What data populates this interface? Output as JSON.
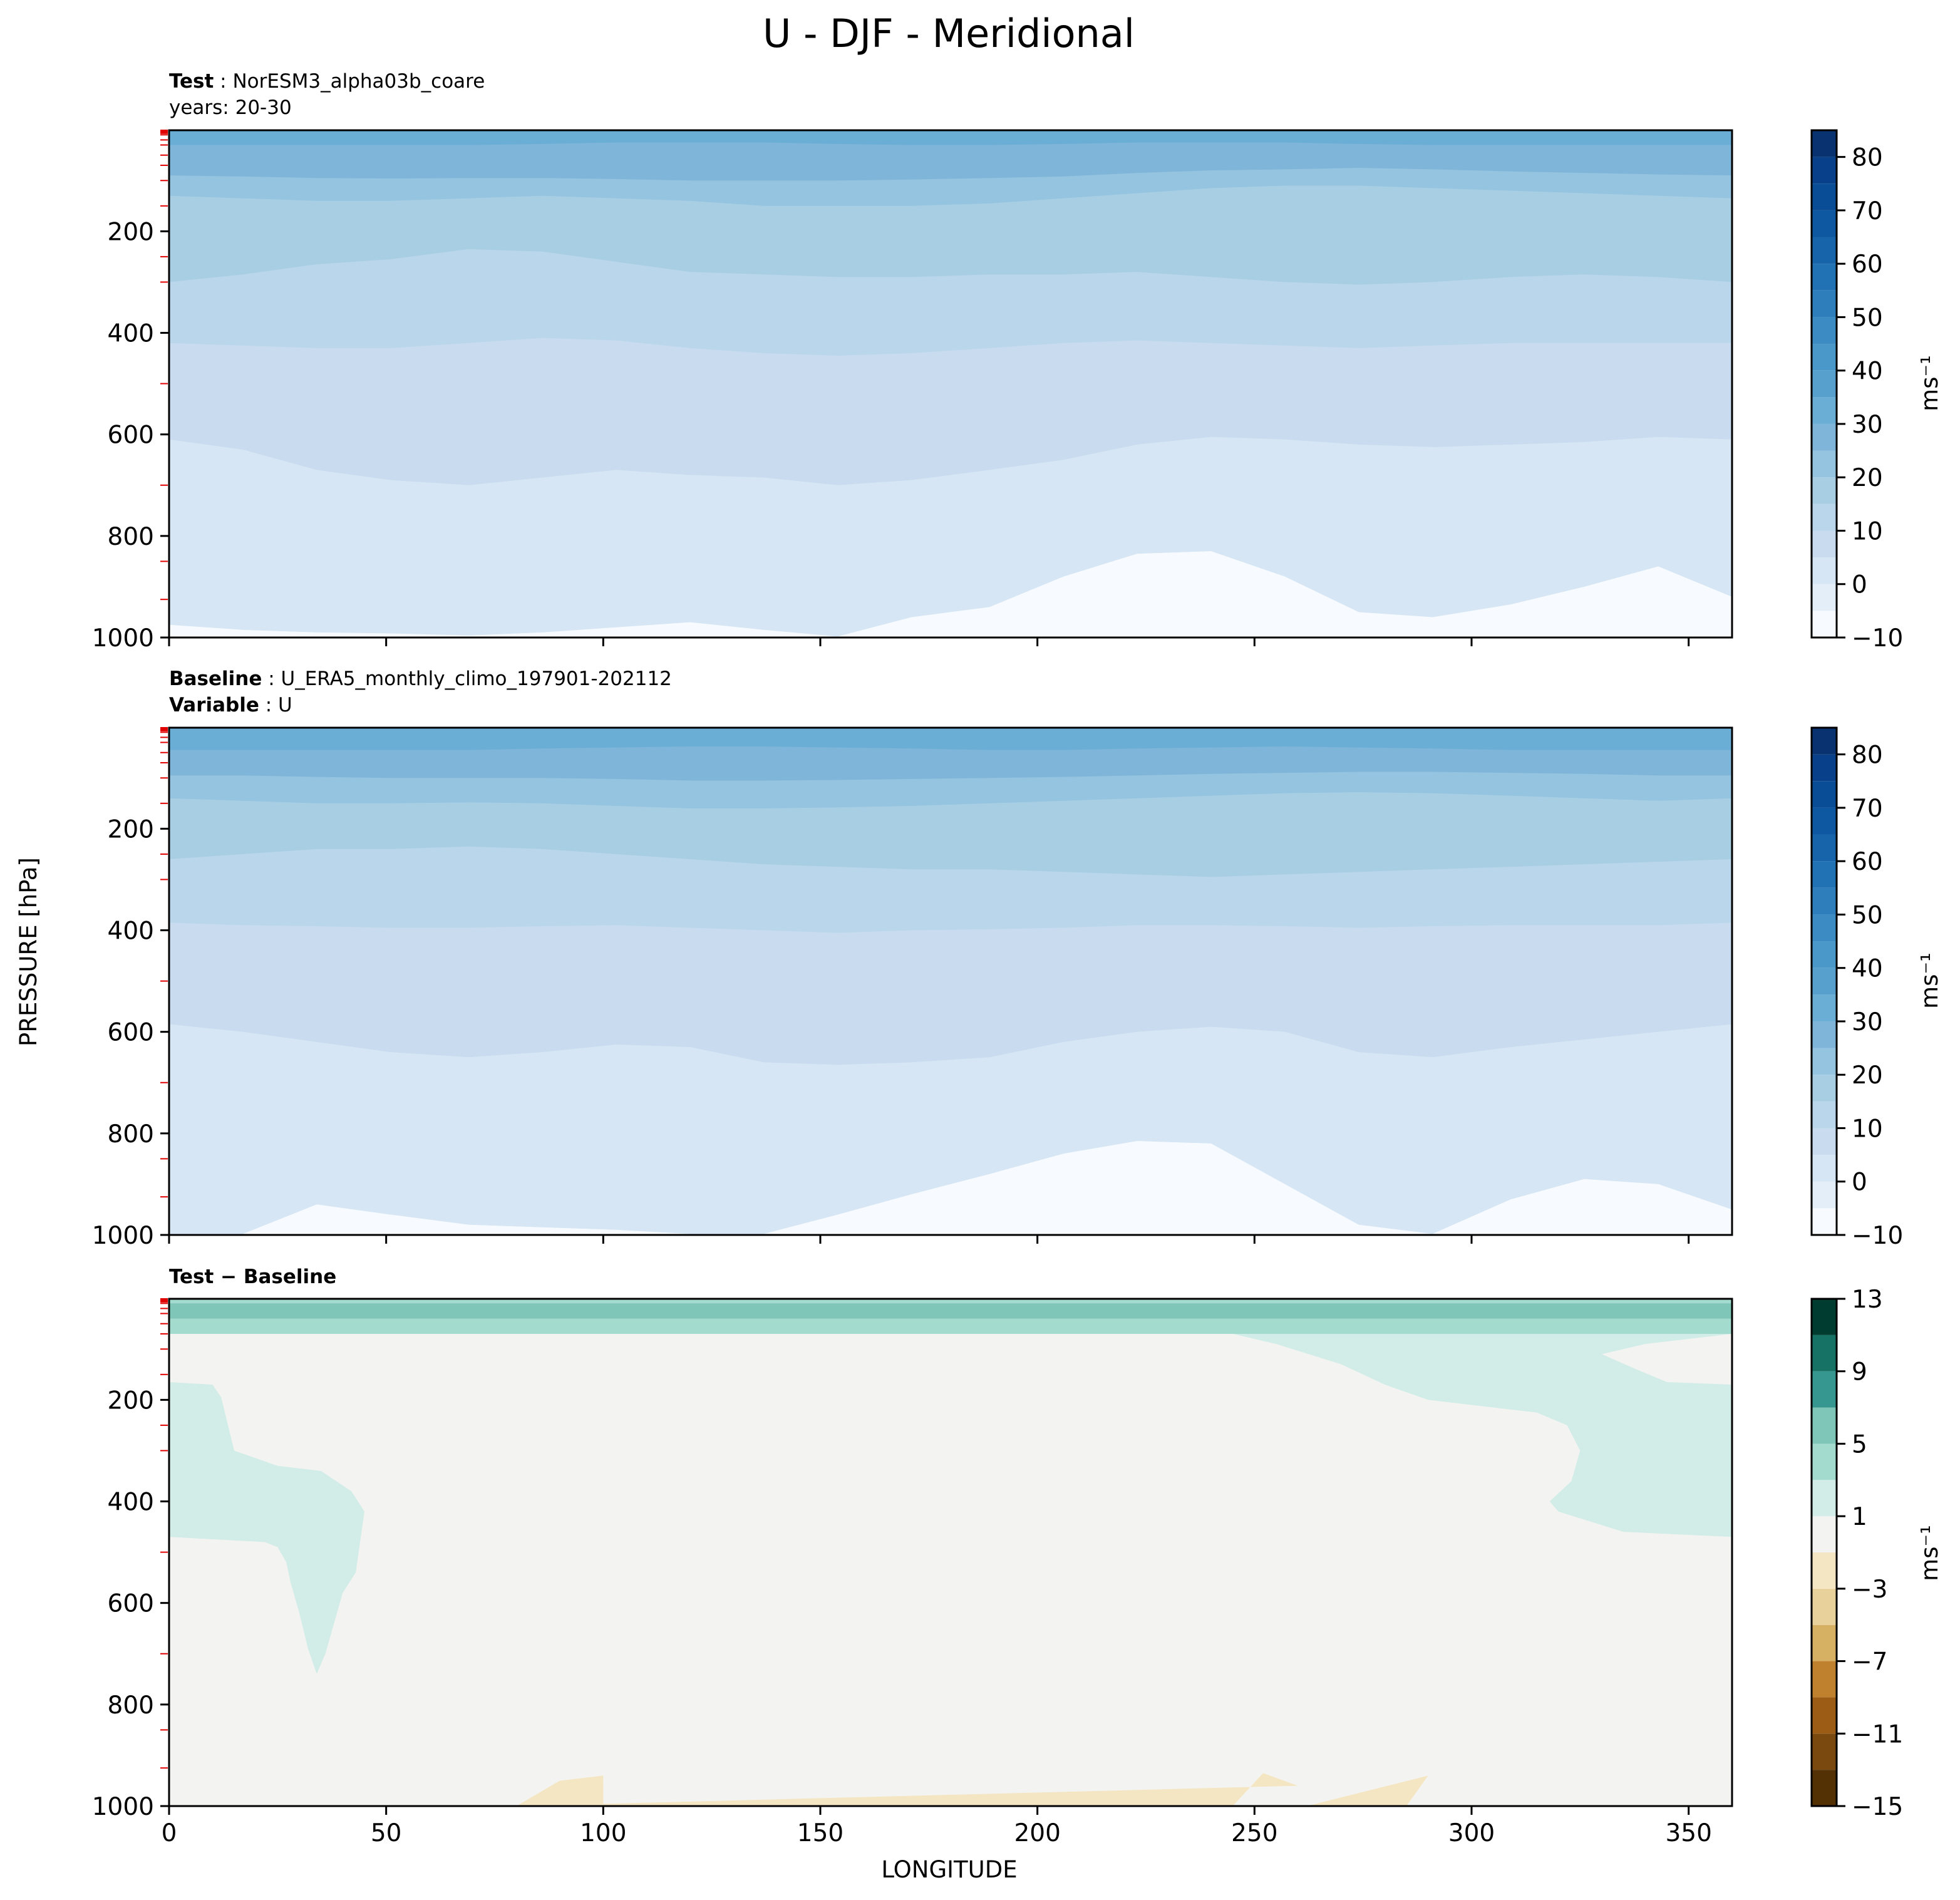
{
  "figure_title": "U - DJF - Meridional",
  "shared_ylabel": "PRESSURE [hPa]",
  "shared_xlabel": "LONGITUDE",
  "panels": [
    {
      "bold": "Test",
      "sep": " : ",
      "text": "NorESM3_alpha03b_coare",
      "line2": "years: 20-30"
    },
    {
      "bold": "Baseline",
      "sep": " : ",
      "text": "U_ERA5_monthly_climo_197901-202112",
      "line2_bold": "Variable",
      "line2_sep": " : ",
      "line2": "U"
    },
    {
      "bold": "Test − Baseline"
    }
  ],
  "colorbars": [
    {
      "unit": "ms⁻¹",
      "ticks": [
        "−10",
        "0",
        "10",
        "20",
        "30",
        "40",
        "50",
        "60",
        "70",
        "80"
      ]
    },
    {
      "unit": "ms⁻¹",
      "ticks": [
        "−10",
        "0",
        "10",
        "20",
        "30",
        "40",
        "50",
        "60",
        "70",
        "80"
      ]
    },
    {
      "unit": "ms⁻¹",
      "ticks": [
        "−15",
        "−11",
        "−7",
        "−3",
        "1",
        "5",
        "9",
        "13"
      ]
    }
  ],
  "chart_data": [
    {
      "type": "heatmap",
      "title": "Test : NorESM3_alpha03b_coare, years: 20-30",
      "xlabel": "LONGITUDE",
      "ylabel": "PRESSURE [hPa]",
      "xlim": [
        0,
        360
      ],
      "ylim": [
        1000,
        1
      ],
      "x_ticks": [
        0,
        50,
        100,
        150,
        200,
        250,
        300,
        350
      ],
      "y_ticks": [
        200,
        400,
        600,
        800,
        1000
      ],
      "y_tick_labels": [
        "200",
        "400",
        "600",
        "800",
        "1000"
      ],
      "colorbar_levels": [
        -10,
        -5,
        0,
        5,
        10,
        15,
        20,
        25,
        30,
        35,
        40,
        45,
        50,
        55,
        60,
        65,
        70,
        75,
        80,
        85
      ],
      "colors": [
        "#f7fbff",
        "#e3eef9",
        "#d6e6f4",
        "#c9dcef",
        "#bad6eb",
        "#a8cee4",
        "#94c4df",
        "#7fb5d8",
        "#6aaed6",
        "#57a0ce",
        "#4a98c9",
        "#3c8bc3",
        "#2e7ebc",
        "#2171b5",
        "#1764ab",
        "#0e58a2",
        "#084d96",
        "#08408a",
        "#083370"
      ],
      "contours": [
        {
          "level": 0,
          "pressure": [
            975,
            985,
            990,
            992,
            996,
            990,
            980,
            970,
            985,
            998,
            960,
            940,
            880,
            835,
            830,
            880,
            950,
            960,
            935,
            900,
            860,
            920
          ]
        },
        {
          "level": 5,
          "pressure": [
            610,
            630,
            670,
            690,
            700,
            685,
            670,
            680,
            685,
            700,
            690,
            670,
            650,
            620,
            605,
            610,
            620,
            625,
            620,
            615,
            605,
            610
          ]
        },
        {
          "level": 10,
          "pressure": [
            420,
            425,
            430,
            430,
            420,
            410,
            415,
            430,
            440,
            445,
            440,
            430,
            420,
            415,
            420,
            425,
            430,
            425,
            420,
            420,
            420,
            420
          ]
        },
        {
          "level": 15,
          "pressure": [
            300,
            285,
            265,
            255,
            235,
            240,
            260,
            280,
            285,
            290,
            290,
            285,
            285,
            280,
            290,
            300,
            305,
            300,
            290,
            285,
            290,
            300
          ]
        },
        {
          "level": 20,
          "pressure": [
            130,
            135,
            140,
            140,
            135,
            130,
            135,
            140,
            150,
            150,
            150,
            145,
            135,
            125,
            115,
            110,
            110,
            115,
            120,
            125,
            130,
            135
          ]
        },
        {
          "level": 25,
          "pressure": [
            90,
            92,
            95,
            96,
            95,
            95,
            97,
            100,
            100,
            100,
            98,
            95,
            92,
            85,
            80,
            78,
            75,
            78,
            82,
            85,
            88,
            90
          ]
        },
        {
          "level": 30,
          "pressure": [
            30,
            30,
            30,
            30,
            30,
            28,
            25,
            25,
            25,
            28,
            30,
            30,
            28,
            25,
            25,
            25,
            28,
            30,
            30,
            30,
            30,
            30
          ]
        }
      ],
      "contour_longitudes": [
        0,
        17,
        34,
        51,
        69,
        86,
        103,
        120,
        137,
        154,
        171,
        189,
        206,
        223,
        240,
        257,
        274,
        291,
        309,
        326,
        343,
        360
      ]
    },
    {
      "type": "heatmap",
      "title": "Baseline : U_ERA5_monthly_climo_197901-202112, Variable : U",
      "xlabel": "LONGITUDE",
      "ylabel": "PRESSURE [hPa]",
      "xlim": [
        0,
        360
      ],
      "ylim": [
        1000,
        1
      ],
      "x_ticks": [
        0,
        50,
        100,
        150,
        200,
        250,
        300,
        350
      ],
      "y_ticks": [
        200,
        400,
        600,
        800,
        1000
      ],
      "y_tick_labels": [
        "200",
        "400",
        "600",
        "800",
        "1000"
      ],
      "colorbar_levels": [
        -10,
        -5,
        0,
        5,
        10,
        15,
        20,
        25,
        30,
        35,
        40,
        45,
        50,
        55,
        60,
        65,
        70,
        75,
        80,
        85
      ],
      "colors": [
        "#f7fbff",
        "#e3eef9",
        "#d6e6f4",
        "#c9dcef",
        "#bad6eb",
        "#a8cee4",
        "#94c4df",
        "#7fb5d8",
        "#6aaed6",
        "#57a0ce",
        "#4a98c9",
        "#3c8bc3",
        "#2e7ebc",
        "#2171b5",
        "#1764ab",
        "#0e58a2",
        "#084d96",
        "#08408a",
        "#083370"
      ],
      "contours": [
        {
          "level": 0,
          "pressure": [
            998,
            998,
            940,
            960,
            980,
            985,
            990,
            998,
            998,
            960,
            920,
            880,
            840,
            815,
            820,
            900,
            980,
            998,
            930,
            890,
            900,
            950
          ]
        },
        {
          "level": 5,
          "pressure": [
            585,
            600,
            620,
            640,
            650,
            640,
            625,
            630,
            660,
            665,
            660,
            650,
            620,
            600,
            590,
            600,
            640,
            650,
            630,
            615,
            600,
            585
          ]
        },
        {
          "level": 10,
          "pressure": [
            385,
            390,
            392,
            395,
            395,
            392,
            390,
            395,
            400,
            405,
            400,
            398,
            395,
            390,
            390,
            392,
            395,
            392,
            390,
            390,
            390,
            385
          ]
        },
        {
          "level": 15,
          "pressure": [
            260,
            250,
            240,
            240,
            235,
            240,
            250,
            260,
            270,
            275,
            280,
            280,
            285,
            290,
            295,
            290,
            285,
            280,
            275,
            270,
            265,
            260
          ]
        },
        {
          "level": 20,
          "pressure": [
            140,
            145,
            150,
            150,
            148,
            150,
            155,
            160,
            160,
            158,
            155,
            150,
            145,
            140,
            135,
            130,
            128,
            130,
            135,
            140,
            145,
            140
          ]
        },
        {
          "level": 25,
          "pressure": [
            95,
            95,
            98,
            100,
            100,
            100,
            102,
            105,
            105,
            104,
            102,
            100,
            98,
            95,
            92,
            90,
            88,
            88,
            90,
            92,
            95,
            95
          ]
        },
        {
          "level": 30,
          "pressure": [
            45,
            45,
            45,
            45,
            45,
            42,
            40,
            38,
            38,
            40,
            42,
            45,
            45,
            42,
            40,
            38,
            40,
            42,
            45,
            45,
            45,
            45
          ]
        }
      ],
      "contour_longitudes": [
        0,
        17,
        34,
        51,
        69,
        86,
        103,
        120,
        137,
        154,
        171,
        189,
        206,
        223,
        240,
        257,
        274,
        291,
        309,
        326,
        343,
        360
      ]
    },
    {
      "type": "heatmap",
      "title": "Test − Baseline",
      "xlabel": "LONGITUDE",
      "ylabel": "PRESSURE [hPa]",
      "xlim": [
        0,
        360
      ],
      "ylim": [
        1000,
        1
      ],
      "x_ticks": [
        0,
        50,
        100,
        150,
        200,
        250,
        300,
        350
      ],
      "x_tick_labels": [
        "0",
        "50",
        "100",
        "150",
        "200",
        "250",
        "300",
        "350"
      ],
      "y_ticks": [
        200,
        400,
        600,
        800,
        1000
      ],
      "y_tick_labels": [
        "200",
        "400",
        "600",
        "800",
        "1000"
      ],
      "colorbar_levels": [
        -15,
        -13,
        -11,
        -9,
        -7,
        -5,
        -3,
        -1,
        1,
        3,
        5,
        7,
        9,
        11,
        13
      ],
      "colors": [
        "#543005",
        "#7a4910",
        "#9c5c15",
        "#bf812d",
        "#d6b063",
        "#e8d19a",
        "#f5e6c3",
        "#f3f4f2",
        "#d2ece7",
        "#a4dbcf",
        "#80c6b8",
        "#35978f",
        "#167265",
        "#003c30"
      ],
      "regions": [
        {
          "name": "west-positive",
          "level": [
            1,
            3
          ],
          "lon": [
            0,
            10,
            12,
            15,
            25,
            35,
            42,
            45,
            44,
            43,
            40,
            38,
            36,
            34,
            32,
            30,
            28,
            27,
            25,
            22,
            0
          ],
          "pressure": [
            165,
            170,
            195,
            300,
            330,
            340,
            380,
            420,
            480,
            540,
            580,
            640,
            700,
            740,
            690,
            620,
            560,
            520,
            490,
            480,
            470
          ]
        },
        {
          "name": "east-positive",
          "level": [
            1,
            3
          ],
          "lon": [
            225,
            240,
            255,
            270,
            280,
            290,
            300,
            315,
            322,
            325,
            323,
            318,
            320,
            335,
            360,
            360,
            345,
            338,
            330,
            340,
            360,
            360,
            225
          ],
          "pressure": [
            60,
            60,
            90,
            130,
            170,
            200,
            210,
            225,
            250,
            300,
            360,
            400,
            420,
            460,
            470,
            170,
            165,
            140,
            110,
            90,
            70,
            60,
            60
          ]
        },
        {
          "name": "top-positive",
          "level": [
            3,
            5
          ],
          "lon": [
            0,
            360,
            360,
            0
          ],
          "pressure": [
            1,
            1,
            70,
            70
          ]
        },
        {
          "name": "top-strong",
          "level": [
            5,
            7
          ],
          "lon": [
            0,
            10,
            95,
            225,
            285,
            360,
            360,
            0
          ],
          "pressure": [
            10,
            10,
            10,
            10,
            10,
            10,
            40,
            40
          ]
        },
        {
          "name": "lower-negative",
          "level": [
            -3,
            -1
          ],
          "lon": [
            80,
            90,
            100,
            100,
            80,
            245,
            252,
            260,
            262,
            245,
            285,
            290,
            293,
            287
          ],
          "pressure": [
            1000,
            950,
            940,
            1000,
            1000,
            1000,
            935,
            960,
            1000,
            1000,
            1000,
            940,
            990,
            1000
          ]
        }
      ]
    }
  ]
}
